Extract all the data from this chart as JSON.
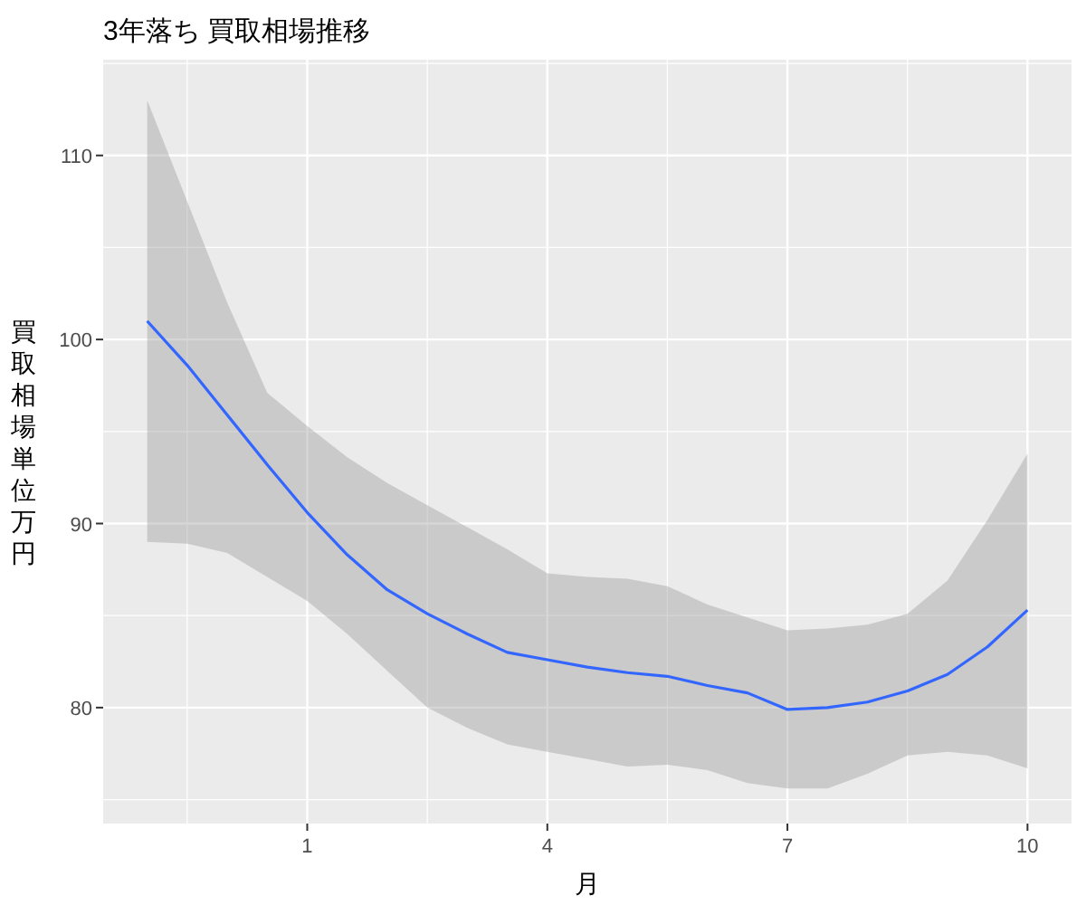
{
  "chart_data": {
    "type": "line",
    "title": "3年落ち 買取相場推移",
    "xlabel": "月",
    "ylabel": "買取相場単位万円",
    "x": [
      -1,
      -0.5,
      0,
      0.5,
      1,
      1.5,
      2,
      2.5,
      3,
      3.5,
      4,
      4.5,
      5,
      5.5,
      6,
      6.5,
      7,
      7.5,
      8,
      8.5,
      9,
      9.5,
      10
    ],
    "series": [
      {
        "color": "#3366ff",
        "values": [
          101.0,
          98.6,
          95.9,
          93.2,
          90.6,
          88.3,
          86.4,
          85.1,
          84.0,
          83.0,
          82.6,
          82.2,
          81.9,
          81.7,
          81.2,
          80.8,
          79.9,
          80.0,
          80.3,
          80.9,
          81.8,
          83.3,
          85.3
        ],
        "lower": [
          89.0,
          88.9,
          88.4,
          87.1,
          85.8,
          84.0,
          82.0,
          80.0,
          78.9,
          78.0,
          77.6,
          77.2,
          76.8,
          76.9,
          76.6,
          75.9,
          75.6,
          75.6,
          76.4,
          77.4,
          77.6,
          77.4,
          76.7
        ],
        "upper": [
          113.0,
          107.5,
          102.0,
          97.1,
          95.3,
          93.6,
          92.2,
          91.0,
          89.8,
          88.6,
          87.3,
          87.1,
          87.0,
          86.6,
          85.6,
          84.9,
          84.2,
          84.3,
          84.5,
          85.1,
          86.9,
          90.2,
          93.8
        ]
      }
    ],
    "xlim": [
      -1.55,
      10.55
    ],
    "xticks": [
      1,
      4,
      7,
      10
    ],
    "ylim": [
      73.7,
      115.2
    ],
    "yticks": [
      80,
      90,
      100,
      110
    ],
    "grid": true
  }
}
